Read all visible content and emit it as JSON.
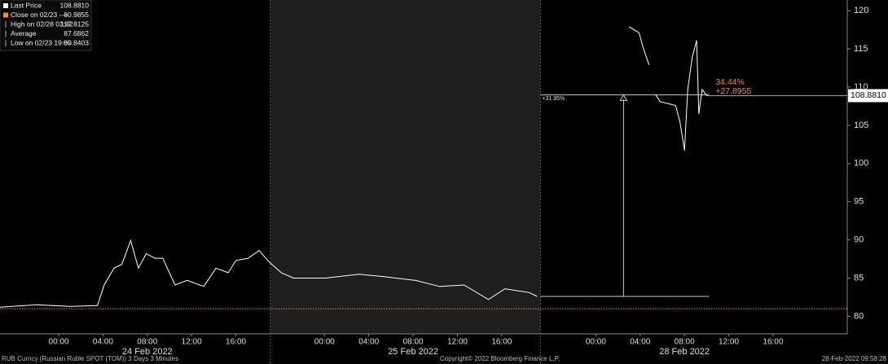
{
  "chart_data": {
    "type": "line",
    "series": [
      {
        "name": "Last Price",
        "color": "#ffffff",
        "x": [
          -5.3,
          -2,
          1,
          3.5,
          4.1,
          5.0,
          5.7,
          6.5,
          7.2,
          7.9,
          8.7,
          9.4,
          10.5,
          11.6,
          13.1,
          14.2,
          15.3,
          16.0,
          17.1,
          18.1,
          19.0,
          20.1,
          21.2,
          24.1,
          27.1,
          29.3,
          32.2,
          34.4,
          36.6,
          38.8,
          40.3,
          42.5,
          43.2,
          47,
          51.5,
          52.4,
          52.8,
          53.3,
          53.6,
          53.9,
          54.3,
          55.7,
          56.1,
          56.5,
          56.8,
          57.2,
          57.6,
          57.8,
          58.1,
          58.5
        ],
        "values": [
          81.2,
          81.5,
          81.3,
          81.4,
          84.1,
          86.3,
          86.8,
          89.9,
          86.3,
          88.2,
          87.6,
          87.6,
          84.1,
          84.7,
          83.9,
          86.3,
          85.7,
          87.3,
          87.6,
          88.6,
          87.1,
          85.7,
          85.0,
          85.0,
          85.5,
          85.2,
          84.7,
          83.9,
          84.1,
          82.2,
          83.6,
          83.1,
          82.6,
          null,
          117.9,
          117.1,
          115.0,
          112.9,
          null,
          109.0,
          108.1,
          107.6,
          105.4,
          101.7,
          109.7,
          113.9,
          116.1,
          106.5,
          109.7,
          108.9
        ]
      }
    ],
    "xlim": [
      -5.3,
      71.2
    ],
    "ylim": [
      77.7,
      121.4
    ],
    "yticks": [
      80,
      85,
      90,
      95,
      100,
      105,
      110,
      115,
      120
    ],
    "xticks": [
      {
        "value": 0,
        "label": "00:00"
      },
      {
        "value": 4,
        "label": "04:00"
      },
      {
        "value": 8,
        "label": "08:00"
      },
      {
        "value": 12,
        "label": "12:00"
      },
      {
        "value": 16,
        "label": "16:00"
      },
      {
        "value": 24,
        "label": "00:00"
      },
      {
        "value": 28,
        "label": "04:00"
      },
      {
        "value": 32,
        "label": "08:00"
      },
      {
        "value": 36,
        "label": "12:00"
      },
      {
        "value": 40,
        "label": "16:00"
      },
      {
        "value": 48.5,
        "label": "00:00"
      },
      {
        "value": 52.5,
        "label": "04:00"
      },
      {
        "value": 56.5,
        "label": "08:00"
      },
      {
        "value": 60.5,
        "label": "12:00"
      },
      {
        "value": 64.5,
        "label": "16:00"
      }
    ],
    "day_labels": [
      {
        "value": 8,
        "label": "24 Feb 2022"
      },
      {
        "value": 32,
        "label": "25 Feb 2022"
      },
      {
        "value": 56.5,
        "label": "28 Feb 2022"
      }
    ],
    "shaded_range": [
      19.1,
      43.5
    ],
    "legend": [
      {
        "name": "Last Price",
        "value": {
          "value": 108.881,
          "label": "108.8810"
        }
      },
      {
        "name": "Close on 02/23 ----",
        "value": 80.9855
      },
      {
        "name": "High on 02/28 03:42",
        "value": 117.8125
      },
      {
        "name": "Average",
        "value": 87.6862
      },
      {
        "name": "Low on 02/23 19:09",
        "value": 80.8403
      }
    ],
    "close_color": "#f28c28",
    "change_annotations": [
      "34.44%",
      "+27.8955"
    ],
    "measure": {
      "x_start": 43.5,
      "x_mid": 51,
      "x_end": 58.7,
      "from": 82.6,
      "to": 109.0,
      "label": "+31.95%"
    },
    "footer": [
      "RUB Curncy (Russian Ruble SPOT (TOM)) 3 Days 3 Minutes",
      "Copyright© 2022 Bloomberg Finance L.P.",
      "28-Feb-2022 09:58:28"
    ]
  }
}
